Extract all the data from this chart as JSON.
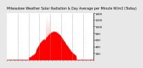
{
  "title": "Milwaukee Weather Solar Radiation & Day Average per Minute W/m2 (Today)",
  "bg_color": "#e8e8e8",
  "plot_bg_color": "#ffffff",
  "bar_color": "#ff0000",
  "grid_color": "#999999",
  "ylim": [
    0,
    1400
  ],
  "yticks": [
    200,
    400,
    600,
    800,
    1000,
    1200,
    1400
  ],
  "num_points": 1440,
  "title_fontsize": 3.5,
  "tick_fontsize": 3.0,
  "num_gridlines": 7
}
